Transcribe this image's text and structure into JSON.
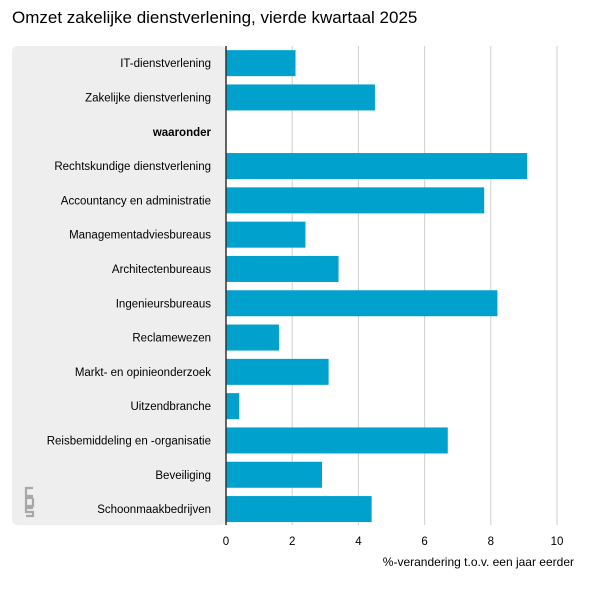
{
  "chart_data": {
    "type": "bar",
    "orientation": "horizontal",
    "title": "Omzet zakelijke dienstverlening, vierde kwartaal 2025",
    "xlabel": "%-verandering t.o.v. een jaar eerder",
    "ylabel": "",
    "xlim": [
      0,
      10
    ],
    "xticks": [
      0,
      2,
      4,
      6,
      8,
      10
    ],
    "grid": true,
    "categories": [
      "IT-dienstverlening",
      "Zakelijke dienstverlening",
      "waaronder",
      "Rechtskundige dienstverlening",
      "Accountancy en administratie",
      "Managementadviesbureaus",
      "Architectenbureaus",
      "Ingenieursbureaus",
      "Reclamewezen",
      "Markt- en opinieonderzoek",
      "Uitzendbranche",
      "Reisbemiddeling en -organisatie",
      "Beveiliging",
      "Schoonmaakbedrijven"
    ],
    "bold_categories": [
      "waaronder"
    ],
    "values": [
      2.1,
      4.5,
      null,
      9.1,
      7.8,
      2.4,
      3.4,
      8.2,
      1.6,
      3.1,
      0.4,
      6.7,
      2.9,
      4.4
    ],
    "bar_color": "#00a1cd",
    "panel_color": "#eeeeee",
    "grid_color": "#cfcfcf"
  },
  "logo": {
    "name": "cbs-logo-icon"
  }
}
